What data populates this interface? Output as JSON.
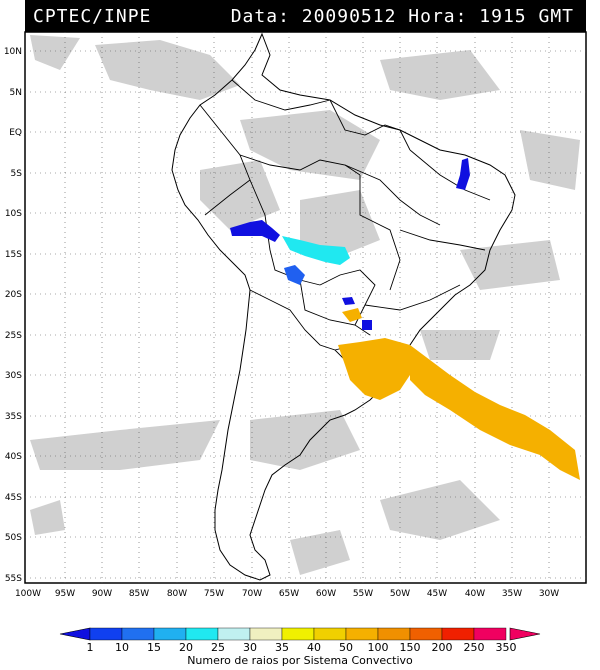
{
  "header": {
    "source": "CPTEC/INPE",
    "datetime": "Data: 20090512 Hora: 1915 GMT"
  },
  "map": {
    "lat_labels": [
      "10N",
      "5N",
      "EQ",
      "5S",
      "10S",
      "15S",
      "20S",
      "25S",
      "30S",
      "35S",
      "40S",
      "45S",
      "50S",
      "55S"
    ],
    "lon_labels": [
      "100W",
      "95W",
      "90W",
      "85W",
      "80W",
      "75W",
      "70W",
      "65W",
      "60W",
      "55W",
      "50W",
      "45W",
      "40W",
      "35W",
      "30W"
    ],
    "gridlines": "dotted",
    "lightning_clusters": [
      {
        "region": "northeast Brazil",
        "color": "#1010e0",
        "class": "1-10"
      },
      {
        "region": "Bolivia/Peru",
        "color": "#1010e0",
        "class": "1-10"
      },
      {
        "region": "Mato Grosso",
        "color": "#20e8f0",
        "class": "20-25"
      },
      {
        "region": "Bolivia south",
        "color": "#2060f0",
        "class": "10-15"
      },
      {
        "region": "Paraguay",
        "color": "#1010e0",
        "class": "1-10"
      },
      {
        "region": "Paraguay south",
        "color": "#f5b000",
        "class": "50-100"
      },
      {
        "region": "Rio Grande do Sul",
        "color": "#f5b000",
        "class": "50-100"
      },
      {
        "region": "South Atlantic",
        "color": "#f5b000",
        "class": "50-100"
      }
    ]
  },
  "colorbar": {
    "values": [
      "1",
      "10",
      "15",
      "20",
      "25",
      "30",
      "35",
      "40",
      "50",
      "100",
      "150",
      "200",
      "250",
      "350"
    ],
    "colors": [
      "#1010e0",
      "#1040f0",
      "#2070f0",
      "#20b0f0",
      "#20e8f0",
      "#c0f0f0",
      "#f0f0c0",
      "#f0f000",
      "#f0d000",
      "#f5b000",
      "#f09000",
      "#f06000",
      "#f02000",
      "#f00060"
    ],
    "title": "Numero de raios por Sistema Convectivo"
  }
}
